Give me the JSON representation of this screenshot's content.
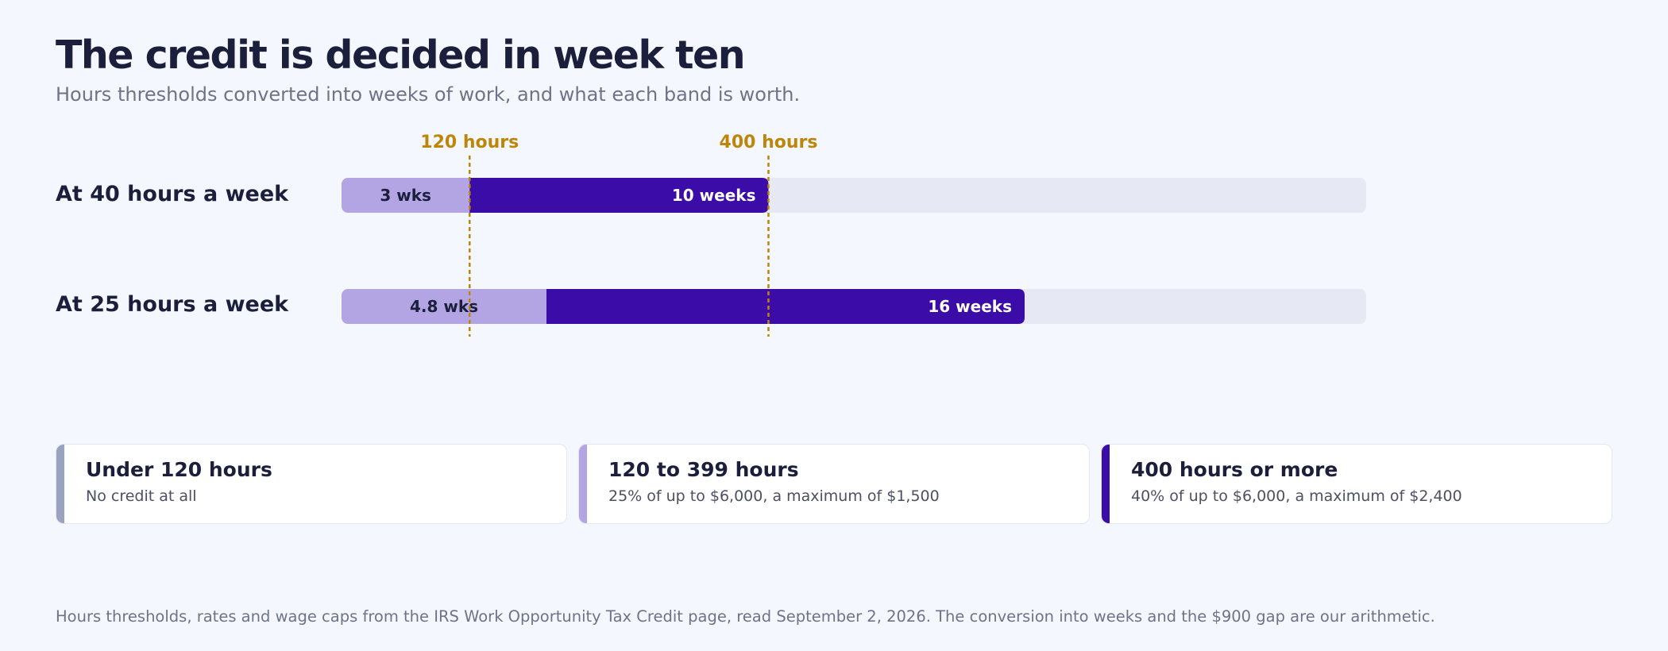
{
  "header": {
    "title": "The credit is decided in week ten",
    "subtitle": "Hours thresholds converted into weeks of work, and what each band is worth."
  },
  "chart_data": {
    "type": "bar",
    "orientation": "horizontal",
    "x_unit": "weeks",
    "xlim": [
      0,
      24
    ],
    "categories": [
      "At 40 hours a week",
      "At 25 hours a week"
    ],
    "series": [
      {
        "name": "",
        "segments": [
          {
            "label": "3 wks",
            "start": 0,
            "end": 3
          },
          {
            "label": "10 weeks",
            "start": 3,
            "end": 10
          }
        ]
      },
      {
        "name": "",
        "segments": [
          {
            "label": "4.8 wks",
            "start": 0,
            "end": 4.8
          },
          {
            "label": "16 weeks",
            "start": 4.8,
            "end": 16
          }
        ]
      }
    ],
    "thresholds": [
      {
        "label": "120 hours",
        "value": 3
      },
      {
        "label": "400 hours",
        "value": 10
      }
    ],
    "colors": {
      "track": "#e6e8f3",
      "under_threshold": "#b3a5e4",
      "credit_band": "#3b0ca8",
      "threshold_line": "#bd8608",
      "label_dark": "#1b1f3b",
      "label_light": "#ffffff"
    },
    "grid": false,
    "legend": "bottom"
  },
  "bands": [
    {
      "title": "Under 120 hours",
      "description": "No credit at all",
      "color": "#9aa3bd"
    },
    {
      "title": "120 to 399 hours",
      "description": "25% of up to $6,000, a maximum of $1,500",
      "color": "#b3a5e4"
    },
    {
      "title": "400 hours or more",
      "description": "40% of up to $6,000, a maximum of $2,400",
      "color": "#3b0ca8"
    }
  ],
  "footnote": "Hours thresholds, rates and wage caps from the IRS Work Opportunity Tax Credit page, read September 2, 2026. The conversion into weeks and the $900 gap are our arithmetic."
}
